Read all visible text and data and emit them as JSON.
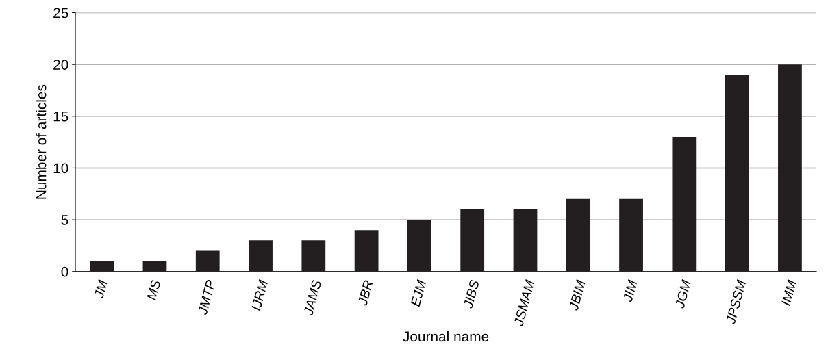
{
  "chart_data": {
    "type": "bar",
    "xlabel": "Journal name",
    "ylabel": "Number of articles",
    "categories": [
      "JM",
      "MS",
      "JMTP",
      "IJRM",
      "JAMS",
      "JBR",
      "EJM",
      "JIBS",
      "JSMAM",
      "JBIM",
      "JIM",
      "JGM",
      "JPSSM",
      "IMM"
    ],
    "values": [
      1,
      1,
      2,
      3,
      3,
      4,
      5,
      6,
      6,
      7,
      7,
      13,
      19,
      20
    ],
    "color": "#231f20",
    "ylim": [
      0,
      25
    ],
    "yticks": [
      0,
      5,
      10,
      15,
      20,
      25
    ],
    "grid": "y"
  }
}
